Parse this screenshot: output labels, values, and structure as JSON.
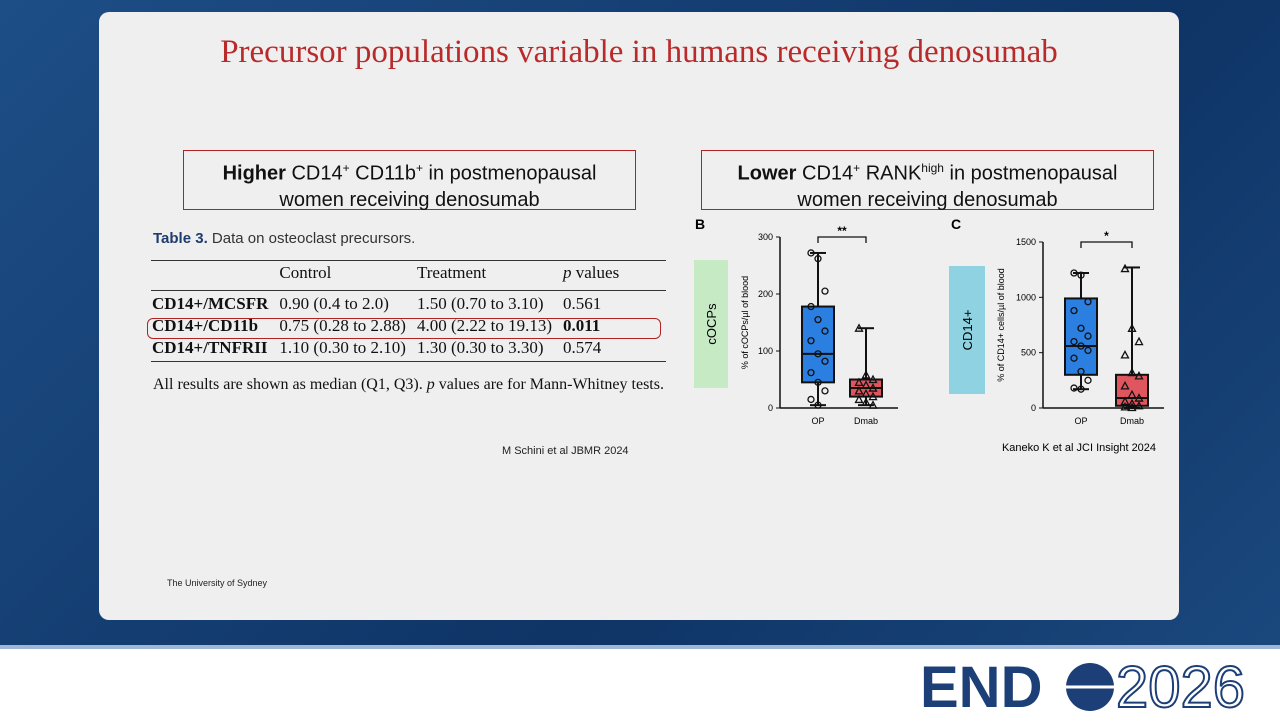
{
  "header": {
    "title": "Precursor populations variable in humans receiving denosumab"
  },
  "left": {
    "callout": {
      "strong": "Higher",
      "t1": " CD14",
      "s1": "+",
      "t2": " CD11b",
      "s2": "+",
      "t3": " in postmenopausal",
      "line2": "women receiving denosumab"
    },
    "table": {
      "label": "Table 3.",
      "caption": "Data on osteoclast precursors.",
      "columns": [
        "Control",
        "Treatment",
        {
          "italic": "p",
          "text": " values"
        }
      ],
      "rows": [
        [
          "CD14+/MCSFR",
          "0.90 (0.4 to 2.0)",
          "1.50 (0.70 to 3.10)",
          "0.561"
        ],
        [
          "CD14+/CD11b",
          "0.75 (0.28 to 2.88)",
          "4.00 (2.22 to 19.13)",
          "0.011"
        ],
        [
          "CD14+/TNFRII",
          "1.10 (0.30 to 2.10)",
          "1.30 (0.30 to 3.30)",
          "0.574"
        ]
      ],
      "highlight_row": 1,
      "footnote": [
        "All results are shown as median (Q1, Q3). ",
        "p",
        " values are for Mann-Whitney tests."
      ]
    },
    "citation": "M Schini et al JBMR 2024"
  },
  "right": {
    "callout": {
      "strong": "Lower",
      "t1": " CD14",
      "s1": "+",
      "t2": " RANK",
      "s2": "high",
      "t3": " in postmenopausal",
      "line2": "women receiving denosumab"
    }
  },
  "chart_data": [
    {
      "type": "box",
      "panel": "B",
      "side_label": "cOCPs",
      "side_color": "#c6ebc4",
      "ylabel": "% of cOCPs/µl of blood",
      "significance": "**",
      "categories": [
        "OP",
        "Dmab"
      ],
      "ylim": [
        0,
        300
      ],
      "yticks": [
        0,
        100,
        200,
        300
      ],
      "boxes": [
        {
          "color": "#2a7fe0",
          "min": 5,
          "q1": 45,
          "median": 95,
          "q3": 178,
          "max": 272,
          "points": [
            272,
            262,
            205,
            178,
            155,
            135,
            118,
            95,
            82,
            62,
            45,
            30,
            15,
            5
          ]
        },
        {
          "color": "#e0565f",
          "min": 5,
          "q1": 20,
          "median": 35,
          "q3": 50,
          "max": 140,
          "points": [
            140,
            58,
            50,
            45,
            40,
            35,
            30,
            25,
            20,
            15,
            10,
            5
          ]
        }
      ]
    },
    {
      "type": "box",
      "panel": "C",
      "side_label": "CD14+",
      "side_color": "#8fd3e2",
      "ylabel": "% of CD14+ cells/µl of blood",
      "significance": "*",
      "note": "Kaneko K et al JCI Insight 2024",
      "categories": [
        "OP",
        "Dmab"
      ],
      "ylim": [
        0,
        1500
      ],
      "yticks": [
        0,
        500,
        1000,
        1500
      ],
      "boxes": [
        {
          "color": "#2a7fe0",
          "min": 170,
          "q1": 300,
          "median": 560,
          "q3": 990,
          "max": 1220,
          "points": [
            1220,
            1200,
            960,
            880,
            720,
            650,
            600,
            560,
            520,
            450,
            330,
            250,
            180,
            170
          ]
        },
        {
          "color": "#e0565f",
          "min": 0,
          "q1": 20,
          "median": 90,
          "q3": 300,
          "max": 1270,
          "points": [
            1260,
            720,
            600,
            480,
            320,
            290,
            200,
            120,
            90,
            60,
            40,
            20,
            10,
            5
          ]
        }
      ]
    }
  ],
  "footer": {
    "org": "The University of Sydney",
    "logo_left": "END",
    "logo_right": "2026"
  }
}
